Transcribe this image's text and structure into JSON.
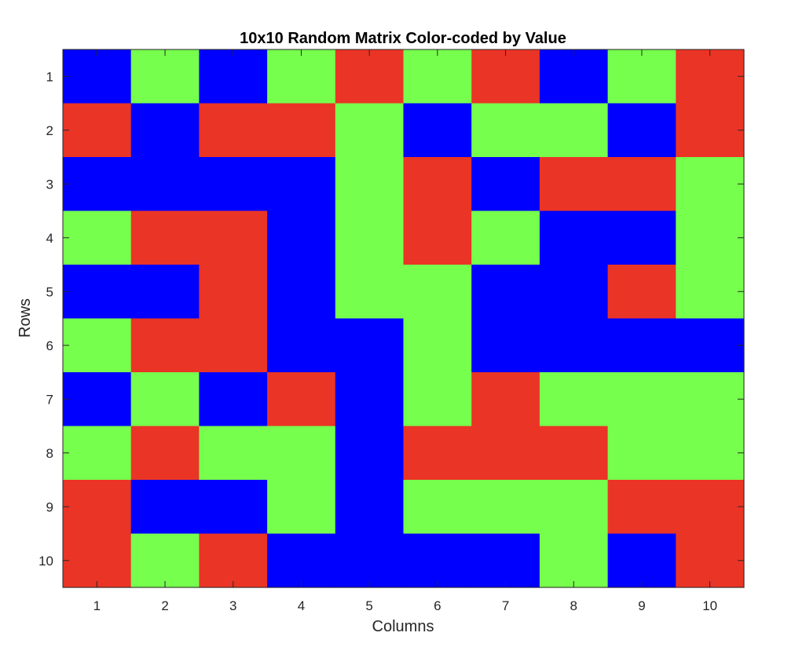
{
  "chart_data": {
    "type": "heatmap",
    "title": "10x10 Random Matrix Color-coded by Value",
    "xlabel": "Columns",
    "ylabel": "Rows",
    "x_ticks": [
      "1",
      "2",
      "3",
      "4",
      "5",
      "6",
      "7",
      "8",
      "9",
      "10"
    ],
    "y_ticks": [
      "1",
      "2",
      "3",
      "4",
      "5",
      "6",
      "7",
      "8",
      "9",
      "10"
    ],
    "colormap": {
      "1": "#0000ff",
      "2": "#77ff4d",
      "3": "#ea3426"
    },
    "matrix": [
      [
        1,
        2,
        1,
        2,
        3,
        2,
        3,
        1,
        2,
        3
      ],
      [
        3,
        1,
        3,
        3,
        2,
        1,
        2,
        2,
        1,
        3
      ],
      [
        1,
        1,
        1,
        1,
        2,
        3,
        1,
        3,
        3,
        2
      ],
      [
        2,
        3,
        3,
        1,
        2,
        3,
        2,
        1,
        1,
        2
      ],
      [
        1,
        1,
        3,
        1,
        2,
        2,
        1,
        1,
        3,
        2
      ],
      [
        2,
        3,
        3,
        1,
        1,
        2,
        1,
        1,
        1,
        1
      ],
      [
        1,
        2,
        1,
        3,
        1,
        2,
        3,
        2,
        2,
        2
      ],
      [
        2,
        3,
        2,
        2,
        1,
        3,
        3,
        3,
        2,
        2
      ],
      [
        3,
        1,
        1,
        2,
        1,
        2,
        2,
        2,
        3,
        3
      ],
      [
        3,
        2,
        3,
        1,
        1,
        1,
        1,
        2,
        1,
        3
      ]
    ]
  }
}
